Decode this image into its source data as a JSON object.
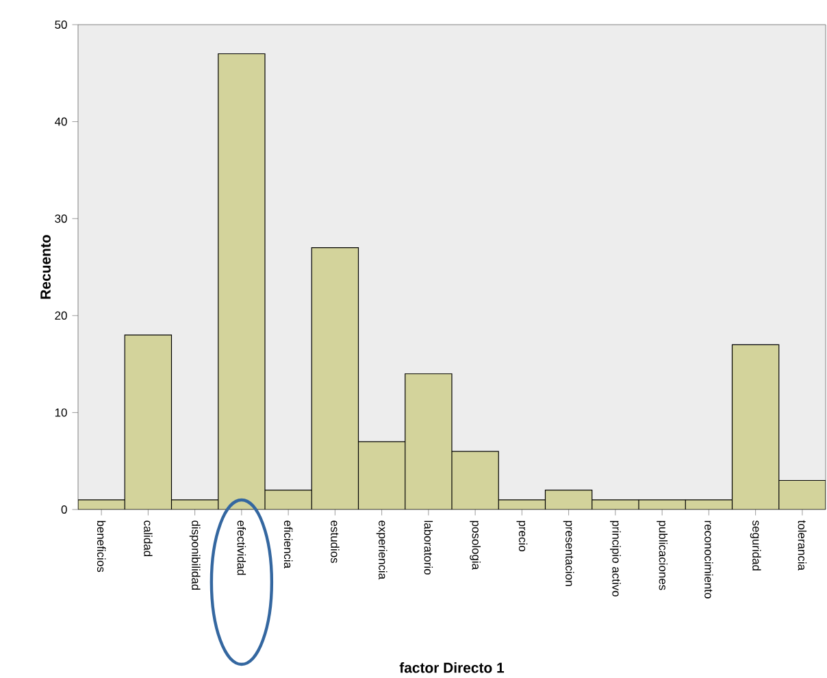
{
  "chart_data": {
    "type": "bar",
    "xlabel": "factor Directo 1",
    "ylabel": "Recuento",
    "categories": [
      "beneficios",
      "calidad",
      "disponibilidad",
      "efectividad",
      "eficiencia",
      "estudios",
      "experiencia",
      "laboratorio",
      "posologia",
      "precio",
      "presentacion",
      "principio activo",
      "publicaciones",
      "reconocimiento",
      "seguridad",
      "tolerancia"
    ],
    "values": [
      1,
      18,
      1,
      47,
      2,
      27,
      7,
      14,
      6,
      1,
      2,
      1,
      1,
      1,
      17,
      3
    ],
    "color": "#d3d39b",
    "ylim": [
      0,
      50
    ],
    "yticks": [
      0,
      10,
      20,
      30,
      40,
      50
    ],
    "grid": false
  }
}
